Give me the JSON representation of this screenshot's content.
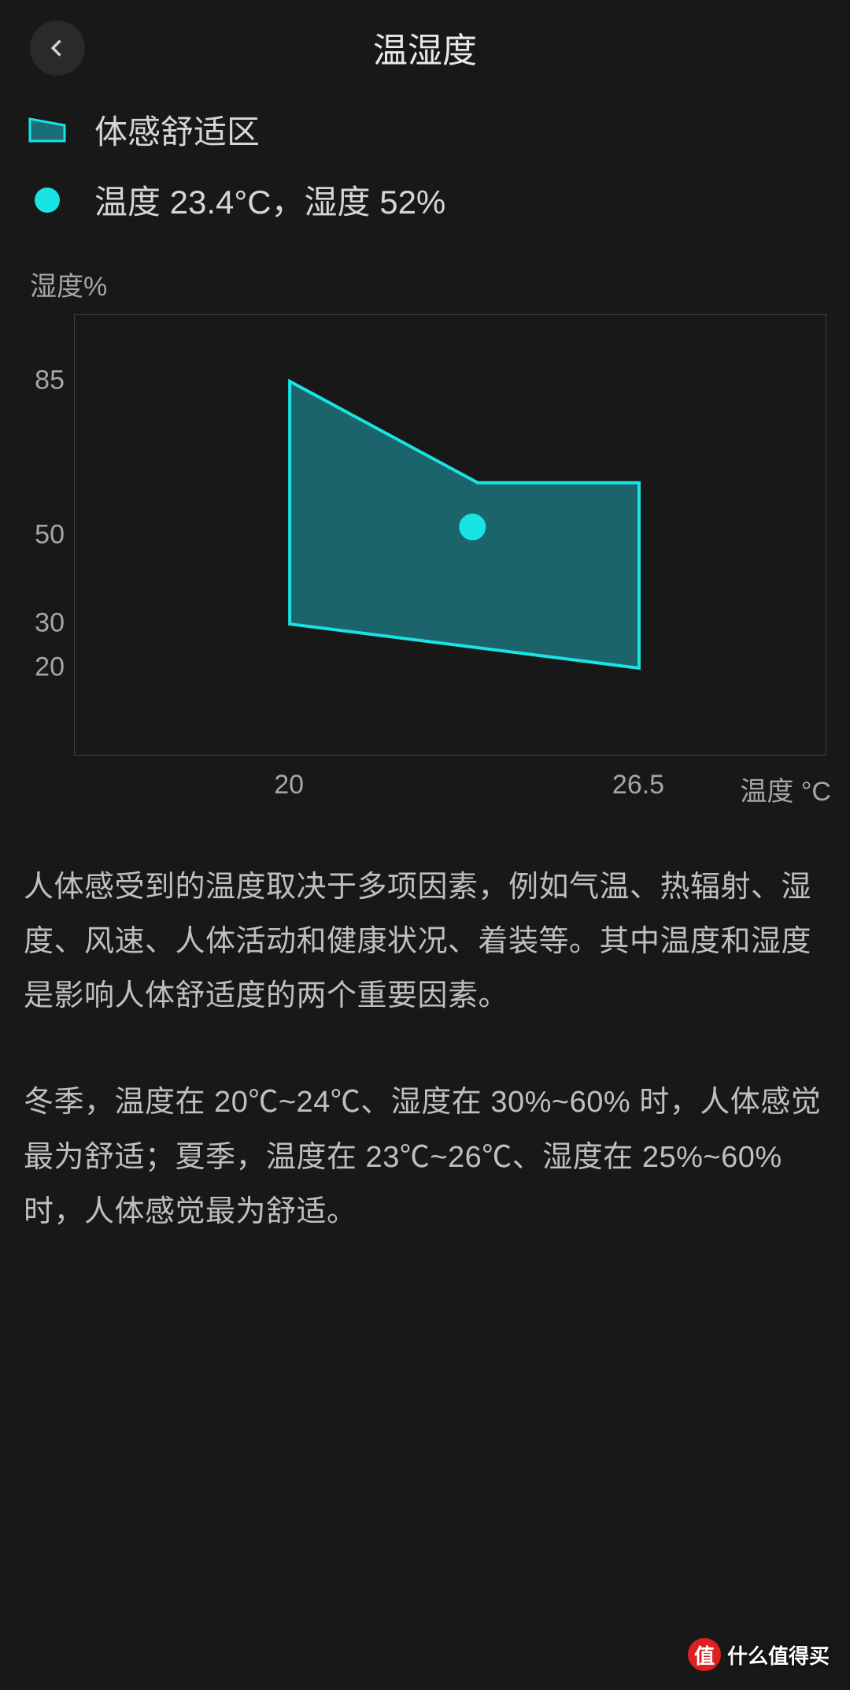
{
  "header": {
    "title": "温湿度"
  },
  "legend": {
    "zone_label": "体感舒适区",
    "point_label": "温度 23.4°C，湿度 52%",
    "colors": {
      "zone_stroke": "#19e3e3",
      "zone_fill": "#1b6e78",
      "point_fill": "#19e3e3"
    }
  },
  "chart": {
    "type": "area-polygon",
    "background_color": "#181818",
    "border_color": "#404040",
    "ylabel": "湿度%",
    "xlabel": "温度 °C",
    "ylim": [
      0,
      100
    ],
    "xlim": [
      16,
      30
    ],
    "yticks": [
      85,
      50,
      30,
      20
    ],
    "xticks": [
      20,
      26.5
    ],
    "xtick_labels": [
      "20",
      "26.5"
    ],
    "tick_color": "#a6a6a6",
    "tick_fontsize": 34,
    "zone_polygon_xy": [
      [
        20,
        85
      ],
      [
        23.5,
        62
      ],
      [
        26.5,
        62
      ],
      [
        26.5,
        20
      ],
      [
        20,
        30
      ]
    ],
    "zone_fill": "#1b6e78",
    "zone_fill_opacity": 0.88,
    "zone_stroke": "#19e3e3",
    "zone_stroke_width": 4,
    "current_point": {
      "temp": 23.4,
      "humidity": 52,
      "color": "#19e3e3",
      "radius": 17
    }
  },
  "desc": {
    "p1": "人体感受到的温度取决于多项因素，例如气温、热辐射、湿度、风速、人体活动和健康状况、着装等。其中温度和湿度是影响人体舒适度的两个重要因素。",
    "p2": "冬季，温度在 20℃~24℃、湿度在 30%~60% 时，人体感觉最为舒适；夏季，温度在 23℃~26℃、湿度在 25%~60% 时，人体感觉最为舒适。"
  },
  "watermark": {
    "badge": "值",
    "text": "什么值得买"
  }
}
